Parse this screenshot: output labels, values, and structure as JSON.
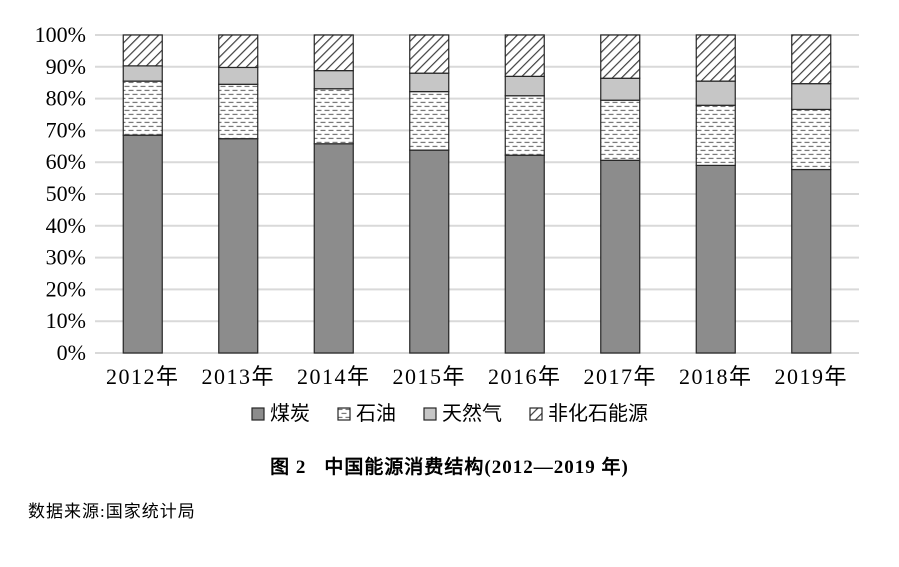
{
  "figure": {
    "label": "图 2",
    "title": "中国能源消费结构(2012—2019 年)",
    "source": "数据来源:国家统计局"
  },
  "chart_data": {
    "type": "bar",
    "variant": "stacked-100-percent",
    "title": "图 2 中国能源消费结构(2012—2019 年)",
    "xlabel": "",
    "ylabel": "",
    "unit": "%",
    "ylim": [
      0,
      100
    ],
    "grid": true,
    "legend_position": "bottom",
    "categories": [
      "2012年",
      "2013年",
      "2014年",
      "2015年",
      "2016年",
      "2017年",
      "2018年",
      "2019年"
    ],
    "series": [
      {
        "key": "coal",
        "name": "煤炭",
        "fill": "solid",
        "color": "#8c8c8c",
        "values": [
          68.5,
          67.4,
          65.8,
          63.8,
          62.2,
          60.6,
          59.0,
          57.7
        ]
      },
      {
        "key": "oil",
        "name": "石油",
        "fill": "dashes",
        "color": "#ffffff",
        "values": [
          17.0,
          17.1,
          17.3,
          18.4,
          18.7,
          18.9,
          18.9,
          18.9
        ]
      },
      {
        "key": "natural-gas",
        "name": "天然气",
        "fill": "solid",
        "color": "#c6c6c6",
        "values": [
          4.8,
          5.3,
          5.7,
          5.8,
          6.1,
          6.9,
          7.6,
          8.1
        ]
      },
      {
        "key": "non-fossil",
        "name": "非化石能源",
        "fill": "hatch",
        "color": "#ffffff",
        "values": [
          9.7,
          10.2,
          11.2,
          12.0,
          13.0,
          13.6,
          14.5,
          15.3
        ]
      }
    ],
    "y_ticks": [
      {
        "value": 0,
        "label": "0%"
      },
      {
        "value": 10,
        "label": "10%"
      },
      {
        "value": 20,
        "label": "20%"
      },
      {
        "value": 30,
        "label": "30%"
      },
      {
        "value": 40,
        "label": "40%"
      },
      {
        "value": 50,
        "label": "50%"
      },
      {
        "value": 60,
        "label": "60%"
      },
      {
        "value": 70,
        "label": "70%"
      },
      {
        "value": 80,
        "label": "80%"
      },
      {
        "value": 90,
        "label": "90%"
      },
      {
        "value": 100,
        "label": "100%"
      }
    ],
    "colors": {
      "bar_border": "#262626",
      "grid_line": "#d9d9d9",
      "dash_stroke": "#7a7a7a",
      "hatch_stroke": "#3f3f3f",
      "text": "#000000",
      "background": "#ffffff"
    }
  }
}
